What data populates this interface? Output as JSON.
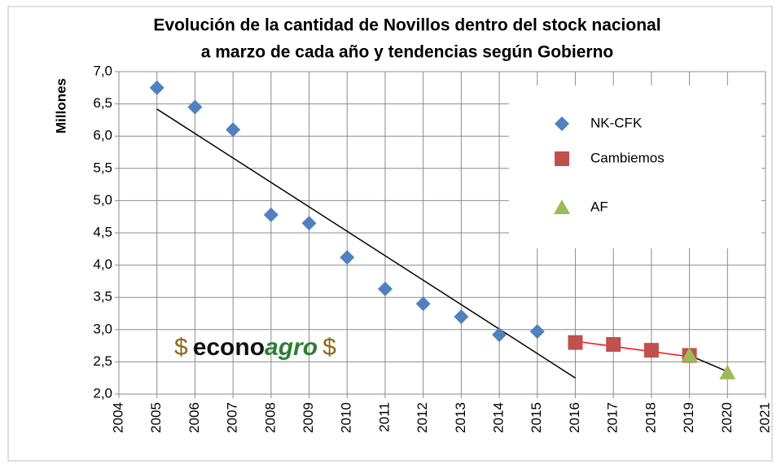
{
  "chart_data": {
    "type": "scatter",
    "title": [
      "Evolución de la cantidad de Novillos dentro del stock nacional",
      "a marzo de cada año y tendencias según Gobierno"
    ],
    "ylabel": "Millones",
    "xlim": [
      2004,
      2021
    ],
    "xticks": [
      2004,
      2005,
      2006,
      2007,
      2008,
      2009,
      2010,
      2011,
      2012,
      2013,
      2014,
      2015,
      2016,
      2017,
      2018,
      2019,
      2020,
      2021
    ],
    "ylim": [
      2.0,
      7.0
    ],
    "yticks": [
      {
        "value": 2.0,
        "label": "2,0"
      },
      {
        "value": 2.5,
        "label": "2,5"
      },
      {
        "value": 3.0,
        "label": "3,0"
      },
      {
        "value": 3.5,
        "label": "3,5"
      },
      {
        "value": 4.0,
        "label": "4,0"
      },
      {
        "value": 4.5,
        "label": "4,5"
      },
      {
        "value": 5.0,
        "label": "5,0"
      },
      {
        "value": 5.5,
        "label": "5,5"
      },
      {
        "value": 6.0,
        "label": "6,0"
      },
      {
        "value": 6.5,
        "label": "6,5"
      },
      {
        "value": 7.0,
        "label": "7,0"
      }
    ],
    "grid": true,
    "legend": "upper right",
    "series": [
      {
        "name": "NK-CFK",
        "color": "#4f81bd",
        "marker": "diamond",
        "x": [
          2005,
          2006,
          2007,
          2008,
          2009,
          2010,
          2011,
          2012,
          2013,
          2014,
          2015
        ],
        "values": [
          6.75,
          6.45,
          6.1,
          4.78,
          4.65,
          4.12,
          3.63,
          3.4,
          3.2,
          2.92,
          2.97
        ],
        "trend": {
          "color": "#000000",
          "x": [
            2005,
            2016
          ],
          "values": [
            6.42,
            2.25
          ]
        }
      },
      {
        "name": "Cambiemos",
        "color": "#c0504d",
        "marker": "square",
        "x": [
          2016,
          2017,
          2018,
          2019
        ],
        "values": [
          2.8,
          2.77,
          2.68,
          2.6
        ],
        "trend": {
          "color": "#ff0000",
          "x": [
            2016,
            2019
          ],
          "values": [
            2.82,
            2.58
          ]
        }
      },
      {
        "name": "AF",
        "color": "#9bbb59",
        "marker": "triangle",
        "x": [
          2019,
          2020
        ],
        "values": [
          2.6,
          2.33
        ],
        "trend": {
          "color": "#000000",
          "x": [
            2019,
            2020
          ],
          "values": [
            2.6,
            2.35
          ]
        }
      }
    ],
    "annotations": [
      "$",
      "econo",
      "agro",
      "$"
    ]
  }
}
